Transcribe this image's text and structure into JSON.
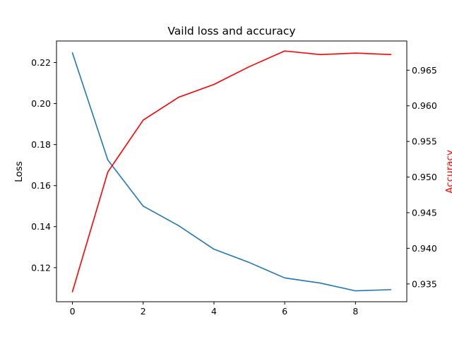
{
  "chart_data": {
    "type": "line",
    "title": "Vaild loss and accuracy",
    "xlabel": "",
    "xlim": [
      -0.45,
      9.45
    ],
    "x_ticks": [
      0,
      2,
      4,
      6,
      8
    ],
    "x_tick_labels": [
      "0",
      "2",
      "4",
      "6",
      "8"
    ],
    "grid": false,
    "legend": "none",
    "axes": {
      "left": {
        "label": "Loss",
        "label_color": "#000000",
        "ylim": [
          0.1034,
          0.2305
        ],
        "ticks": [
          0.12,
          0.14,
          0.16,
          0.18,
          0.2,
          0.22
        ],
        "tick_labels": [
          "0.12",
          "0.14",
          "0.16",
          "0.18",
          "0.20",
          "0.22"
        ]
      },
      "right": {
        "label": "Accuracy",
        "label_color": "#ff0000",
        "ylim": [
          0.9325,
          0.9691
        ],
        "ticks": [
          0.935,
          0.94,
          0.945,
          0.95,
          0.955,
          0.96,
          0.965
        ],
        "tick_labels": [
          "0.935",
          "0.940",
          "0.945",
          "0.950",
          "0.955",
          "0.960",
          "0.965"
        ]
      }
    },
    "series": [
      {
        "axis": "left",
        "color": "#1f77b4",
        "x": [
          0,
          1,
          2,
          3,
          4,
          5,
          6,
          7,
          8,
          9
        ],
        "values": [
          0.2247,
          0.1725,
          0.15,
          0.1405,
          0.129,
          0.1225,
          0.115,
          0.1125,
          0.1087,
          0.1093
        ]
      },
      {
        "axis": "right",
        "color": "#ff0000",
        "x": [
          0,
          1,
          2,
          3,
          4,
          5,
          6,
          7,
          8,
          9
        ],
        "values": [
          0.9339,
          0.9507,
          0.958,
          0.9612,
          0.963,
          0.9655,
          0.9677,
          0.9672,
          0.9674,
          0.9672
        ]
      }
    ]
  }
}
